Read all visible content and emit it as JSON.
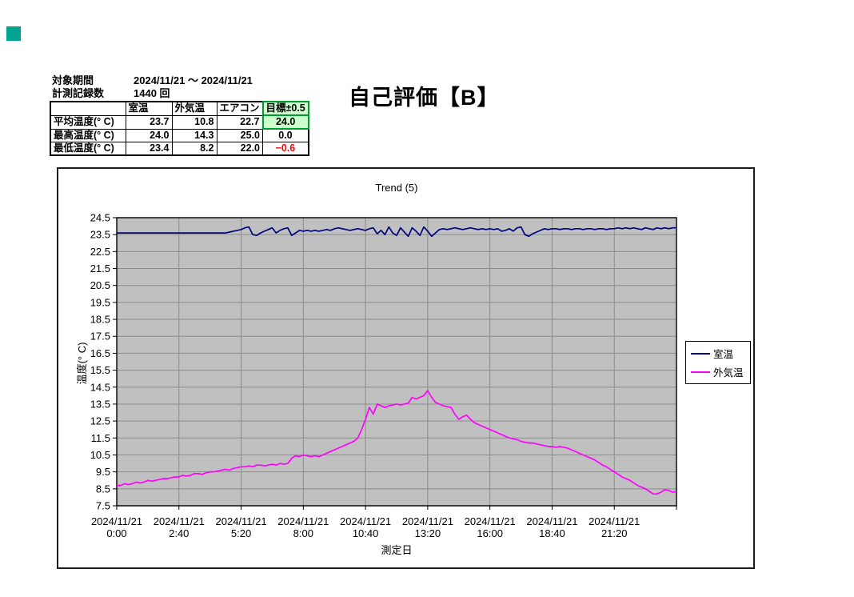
{
  "info": {
    "period_label": "対象期間",
    "period_value": "2024/11/21 ～ 2024/11/21",
    "count_label": "計測記録数",
    "count_value": "1440 回"
  },
  "evaluation": {
    "text": "自己評価【B】"
  },
  "summary_table": {
    "col_headers": [
      "室温",
      "外気温",
      "エアコン",
      "目標±0.5"
    ],
    "rows": [
      {
        "label": "平均温度(° C)",
        "room": "23.7",
        "outdoor": "10.8",
        "aircon": "22.7",
        "target": "24.0"
      },
      {
        "label": "最高温度(° C)",
        "room": "24.0",
        "outdoor": "14.3",
        "aircon": "25.0",
        "target": "0.0"
      },
      {
        "label": "最低温度(° C)",
        "room": "23.4",
        "outdoor": "8.2",
        "aircon": "22.0",
        "target": "−0.6"
      }
    ]
  },
  "colors": {
    "plot_bg": "#c0c0c0",
    "gridline": "#8c8c8c",
    "room_line": "#000080",
    "outdoor_line": "#ff00ff",
    "target_cell_bg": "#ccffcc",
    "target_cell_border": "#009933",
    "negative_value": "#ff0000",
    "corner_marker": "#00a591"
  },
  "chart_data": {
    "type": "line",
    "title": "Trend (5)",
    "xlabel": "測定日",
    "ylabel": "温度(° C)",
    "ylim": [
      7.5,
      24.5
    ],
    "y_tick_step": 1.0,
    "grid": true,
    "legend_position": "right",
    "plot_bg": "#c0c0c0",
    "x_total_minutes": 1440,
    "sample_interval_minutes": 10,
    "x_ticks": [
      {
        "date": "2024/11/21",
        "time": "0:00"
      },
      {
        "date": "2024/11/21",
        "time": "2:40"
      },
      {
        "date": "2024/11/21",
        "time": "5:20"
      },
      {
        "date": "2024/11/21",
        "time": "8:00"
      },
      {
        "date": "2024/11/21",
        "time": "10:40"
      },
      {
        "date": "2024/11/21",
        "time": "13:20"
      },
      {
        "date": "2024/11/21",
        "time": "16:00"
      },
      {
        "date": "2024/11/21",
        "time": "18:40"
      },
      {
        "date": "2024/11/21",
        "time": "21:20"
      }
    ],
    "y_ticks": [
      "24.5",
      "23.5",
      "22.5",
      "21.5",
      "20.5",
      "19.5",
      "18.5",
      "17.5",
      "16.5",
      "15.5",
      "14.5",
      "13.5",
      "12.5",
      "11.5",
      "10.5",
      "9.5",
      "8.5",
      "7.5"
    ],
    "series": [
      {
        "name": "室温",
        "color": "#000080",
        "stats": {
          "avg": 23.7,
          "max": 24.0,
          "min": 23.4
        },
        "values": [
          23.6,
          23.6,
          23.6,
          23.6,
          23.6,
          23.6,
          23.6,
          23.6,
          23.6,
          23.6,
          23.6,
          23.6,
          23.6,
          23.6,
          23.6,
          23.6,
          23.6,
          23.6,
          23.6,
          23.6,
          23.6,
          23.6,
          23.6,
          23.6,
          23.6,
          23.6,
          23.6,
          23.6,
          23.6,
          23.65,
          23.7,
          23.75,
          23.8,
          23.9,
          23.95,
          23.5,
          23.45,
          23.6,
          23.7,
          23.8,
          23.9,
          23.6,
          23.75,
          23.85,
          23.9,
          23.45,
          23.6,
          23.75,
          23.7,
          23.75,
          23.7,
          23.75,
          23.7,
          23.75,
          23.8,
          23.75,
          23.85,
          23.9,
          23.85,
          23.8,
          23.75,
          23.8,
          23.85,
          23.8,
          23.75,
          23.85,
          23.9,
          23.55,
          23.75,
          23.5,
          23.95,
          23.6,
          23.45,
          23.9,
          23.65,
          23.4,
          23.9,
          23.7,
          23.45,
          23.95,
          23.7,
          23.4,
          23.6,
          23.8,
          23.85,
          23.8,
          23.85,
          23.9,
          23.85,
          23.8,
          23.85,
          23.9,
          23.85,
          23.8,
          23.85,
          23.8,
          23.85,
          23.8,
          23.85,
          23.7,
          23.75,
          23.85,
          23.7,
          23.9,
          23.95,
          23.5,
          23.4,
          23.55,
          23.65,
          23.75,
          23.85,
          23.8,
          23.85,
          23.85,
          23.8,
          23.85,
          23.85,
          23.8,
          23.85,
          23.85,
          23.8,
          23.85,
          23.85,
          23.8,
          23.85,
          23.85,
          23.8,
          23.85,
          23.85,
          23.9,
          23.85,
          23.9,
          23.85,
          23.9,
          23.85,
          23.8,
          23.9,
          23.85,
          23.8,
          23.9,
          23.85,
          23.9,
          23.85,
          23.9,
          23.9
        ]
      },
      {
        "name": "外気温",
        "color": "#ff00ff",
        "stats": {
          "avg": 10.8,
          "max": 14.3,
          "min": 8.2
        },
        "values": [
          8.7,
          8.7,
          8.8,
          8.75,
          8.8,
          8.9,
          8.85,
          8.9,
          9.0,
          8.95,
          9.0,
          9.05,
          9.1,
          9.1,
          9.15,
          9.2,
          9.2,
          9.3,
          9.25,
          9.3,
          9.4,
          9.4,
          9.35,
          9.45,
          9.5,
          9.5,
          9.55,
          9.6,
          9.65,
          9.6,
          9.7,
          9.75,
          9.8,
          9.8,
          9.85,
          9.8,
          9.9,
          9.9,
          9.85,
          9.9,
          9.95,
          9.9,
          10.0,
          9.95,
          10.0,
          10.3,
          10.45,
          10.4,
          10.5,
          10.45,
          10.4,
          10.45,
          10.4,
          10.5,
          10.6,
          10.7,
          10.8,
          10.9,
          11.0,
          11.1,
          11.2,
          11.3,
          11.5,
          12.0,
          12.6,
          13.3,
          12.9,
          13.5,
          13.4,
          13.3,
          13.4,
          13.45,
          13.5,
          13.45,
          13.5,
          13.55,
          13.9,
          13.8,
          13.9,
          14.0,
          14.3,
          13.9,
          13.6,
          13.5,
          13.4,
          13.35,
          13.3,
          12.9,
          12.6,
          12.75,
          12.85,
          12.6,
          12.4,
          12.3,
          12.2,
          12.1,
          12.0,
          11.9,
          11.8,
          11.7,
          11.6,
          11.5,
          11.45,
          11.4,
          11.3,
          11.25,
          11.2,
          11.2,
          11.15,
          11.1,
          11.05,
          11.0,
          11.0,
          10.95,
          11.0,
          10.95,
          10.9,
          10.8,
          10.7,
          10.6,
          10.5,
          10.4,
          10.3,
          10.2,
          10.05,
          9.9,
          9.8,
          9.65,
          9.5,
          9.35,
          9.2,
          9.1,
          9.0,
          8.85,
          8.7,
          8.6,
          8.5,
          8.35,
          8.2,
          8.2,
          8.3,
          8.45,
          8.4,
          8.3,
          8.35
        ]
      }
    ]
  }
}
